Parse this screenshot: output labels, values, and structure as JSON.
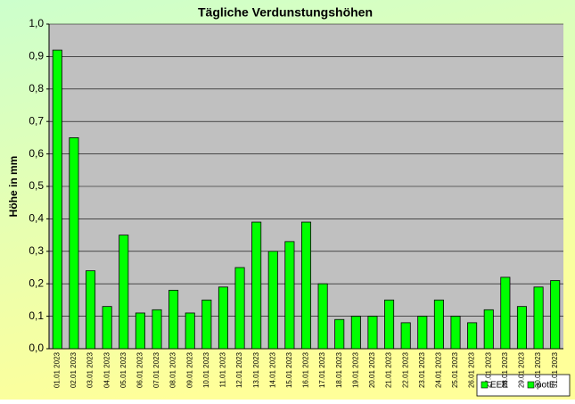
{
  "chart_data": {
    "type": "bar",
    "title": "Tägliche Verdunstungshöhen",
    "y_label": "Höhe in mm",
    "categories": [
      "01.01 2023",
      "02.01 2023",
      "03.01 2023",
      "04.01 2023",
      "05.01 2023",
      "06.01 2023",
      "07.01 2023",
      "08.01 2023",
      "09.01 2023",
      "10.01 2023",
      "11.01 2023",
      "12.01 2023",
      "13.01 2023",
      "14.01 2023",
      "15.01 2023",
      "16.01 2023",
      "17.01 2023",
      "18.01 2023",
      "19.01 2023",
      "20.01 2023",
      "21.01 2023",
      "22.01 2023",
      "23.01 2023",
      "24.01 2023",
      "25.01 2023",
      "26.01 2023",
      "27.01 2023",
      "28.01 2023",
      "29.01 2023",
      "30.01 2023",
      "31.01 2023"
    ],
    "series": [
      {
        "name": "EEE",
        "color": "#00ff00",
        "values": [
          null,
          null,
          null,
          null,
          null,
          null,
          null,
          null,
          null,
          null,
          null,
          null,
          null,
          null,
          null,
          null,
          null,
          null,
          null,
          null,
          null,
          null,
          null,
          null,
          null,
          null,
          null,
          null,
          null,
          null,
          null
        ]
      },
      {
        "name": "potE",
        "color": "#00ff00",
        "values": [
          0.92,
          0.65,
          0.24,
          0.13,
          0.35,
          0.11,
          0.12,
          0.18,
          0.11,
          0.15,
          0.19,
          0.25,
          0.39,
          0.3,
          0.33,
          0.39,
          0.2,
          0.09,
          0.1,
          0.1,
          0.15,
          0.08,
          0.1,
          0.15,
          0.1,
          0.08,
          0.12,
          0.22,
          0.13,
          0.19,
          0.21
        ]
      }
    ],
    "ylim": [
      0,
      1
    ],
    "yticks": [
      {
        "value": 0,
        "label": "0,0"
      },
      {
        "value": 0.1,
        "label": "0,1"
      },
      {
        "value": 0.2,
        "label": "0,2"
      },
      {
        "value": 0.3,
        "label": "0,3"
      },
      {
        "value": 0.4,
        "label": "0,4"
      },
      {
        "value": 0.5,
        "label": "0,5"
      },
      {
        "value": 0.6,
        "label": "0,6"
      },
      {
        "value": 0.7,
        "label": "0,7"
      },
      {
        "value": 0.8,
        "label": "0,8"
      },
      {
        "value": 0.9,
        "label": "0,9"
      },
      {
        "value": 1,
        "label": "1,0"
      }
    ],
    "grid": true,
    "legend": "bottom-right"
  }
}
